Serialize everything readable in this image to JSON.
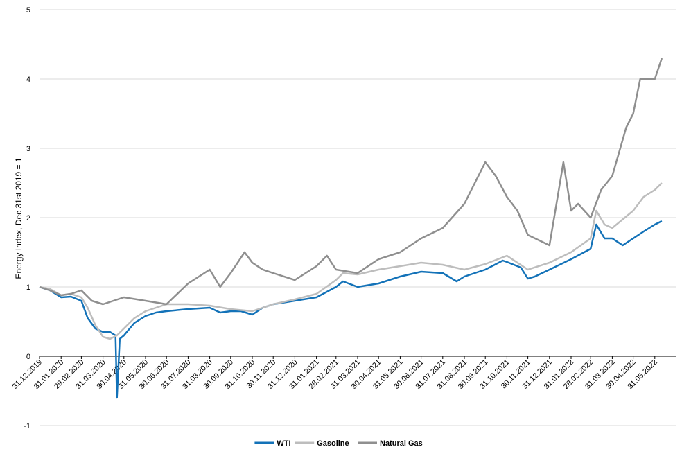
{
  "chart_data": {
    "type": "line",
    "ylabel": "Energy Index, Dec 31st  2019 = 1",
    "ylim": [
      -1,
      5
    ],
    "yticks": [
      -1,
      0,
      1,
      2,
      3,
      4,
      5
    ],
    "x_tick_labels": [
      "31.12.2019",
      "31.01.2020",
      "29.02.2020",
      "31.03.2020",
      "30.04.2020",
      "31.05.2020",
      "30.06.2020",
      "31.07.2020",
      "31.08.2020",
      "30.09.2020",
      "31.10.2020",
      "30.11.2020",
      "31.12.2020",
      "31.01.2021",
      "28.02.2021",
      "31.03.2021",
      "30.04.2021",
      "31.05.2021",
      "30.06.2021",
      "31.07.2021",
      "31.08.2021",
      "30.09.2021",
      "31.10.2021",
      "30.11.2021",
      "31.12.2021",
      "31.01.2022",
      "28.02.2022",
      "31.03.2022",
      "30.04.2022",
      "31.05.2022"
    ],
    "grid": true,
    "legend_position": "bottom",
    "series": [
      {
        "name": "WTI",
        "color": "#1f77b4",
        "stroke": "#1372b8",
        "points": [
          [
            "31.12.2019",
            1.0
          ],
          [
            "15.01.2020",
            0.95
          ],
          [
            "31.01.2020",
            0.85
          ],
          [
            "14.02.2020",
            0.86
          ],
          [
            "29.02.2020",
            0.8
          ],
          [
            "09.03.2020",
            0.55
          ],
          [
            "20.03.2020",
            0.4
          ],
          [
            "31.03.2020",
            0.35
          ],
          [
            "10.04.2020",
            0.35
          ],
          [
            "18.04.2020",
            0.3
          ],
          [
            "20.04.2020",
            -0.6
          ],
          [
            "24.04.2020",
            0.25
          ],
          [
            "30.04.2020",
            0.3
          ],
          [
            "15.05.2020",
            0.48
          ],
          [
            "31.05.2020",
            0.58
          ],
          [
            "15.06.2020",
            0.63
          ],
          [
            "30.06.2020",
            0.65
          ],
          [
            "31.07.2020",
            0.68
          ],
          [
            "31.08.2020",
            0.7
          ],
          [
            "15.09.2020",
            0.63
          ],
          [
            "30.09.2020",
            0.65
          ],
          [
            "15.10.2020",
            0.65
          ],
          [
            "31.10.2020",
            0.6
          ],
          [
            "15.11.2020",
            0.7
          ],
          [
            "30.11.2020",
            0.75
          ],
          [
            "31.12.2020",
            0.8
          ],
          [
            "31.01.2021",
            0.85
          ],
          [
            "28.02.2021",
            1.0
          ],
          [
            "10.03.2021",
            1.08
          ],
          [
            "31.03.2021",
            1.0
          ],
          [
            "30.04.2021",
            1.05
          ],
          [
            "31.05.2021",
            1.15
          ],
          [
            "30.06.2021",
            1.22
          ],
          [
            "31.07.2021",
            1.2
          ],
          [
            "20.08.2021",
            1.08
          ],
          [
            "31.08.2021",
            1.15
          ],
          [
            "30.09.2021",
            1.25
          ],
          [
            "25.10.2021",
            1.38
          ],
          [
            "31.10.2021",
            1.36
          ],
          [
            "20.11.2021",
            1.28
          ],
          [
            "30.11.2021",
            1.12
          ],
          [
            "10.12.2021",
            1.15
          ],
          [
            "31.12.2021",
            1.25
          ],
          [
            "31.01.2022",
            1.4
          ],
          [
            "28.02.2022",
            1.55
          ],
          [
            "08.03.2022",
            1.9
          ],
          [
            "20.03.2022",
            1.7
          ],
          [
            "31.03.2022",
            1.7
          ],
          [
            "15.04.2022",
            1.6
          ],
          [
            "30.04.2022",
            1.7
          ],
          [
            "15.05.2022",
            1.8
          ],
          [
            "31.05.2022",
            1.9
          ],
          [
            "10.06.2022",
            1.95
          ]
        ]
      },
      {
        "name": "Gasoline",
        "color": "#bfbfbf",
        "stroke": "#bdbdbd",
        "points": [
          [
            "31.12.2019",
            1.0
          ],
          [
            "15.01.2020",
            0.97
          ],
          [
            "31.01.2020",
            0.88
          ],
          [
            "14.02.2020",
            0.9
          ],
          [
            "29.02.2020",
            0.85
          ],
          [
            "09.03.2020",
            0.7
          ],
          [
            "20.03.2020",
            0.45
          ],
          [
            "31.03.2020",
            0.28
          ],
          [
            "10.04.2020",
            0.25
          ],
          [
            "20.04.2020",
            0.3
          ],
          [
            "30.04.2020",
            0.4
          ],
          [
            "15.05.2020",
            0.55
          ],
          [
            "31.05.2020",
            0.65
          ],
          [
            "15.06.2020",
            0.7
          ],
          [
            "30.06.2020",
            0.75
          ],
          [
            "31.07.2020",
            0.75
          ],
          [
            "31.08.2020",
            0.73
          ],
          [
            "30.09.2020",
            0.68
          ],
          [
            "31.10.2020",
            0.65
          ],
          [
            "30.11.2020",
            0.75
          ],
          [
            "31.12.2020",
            0.82
          ],
          [
            "31.01.2021",
            0.9
          ],
          [
            "28.02.2021",
            1.1
          ],
          [
            "10.03.2021",
            1.2
          ],
          [
            "31.03.2021",
            1.18
          ],
          [
            "30.04.2021",
            1.25
          ],
          [
            "31.05.2021",
            1.3
          ],
          [
            "30.06.2021",
            1.35
          ],
          [
            "31.07.2021",
            1.32
          ],
          [
            "31.08.2021",
            1.25
          ],
          [
            "30.09.2021",
            1.33
          ],
          [
            "31.10.2021",
            1.45
          ],
          [
            "30.11.2021",
            1.25
          ],
          [
            "31.12.2021",
            1.35
          ],
          [
            "31.01.2022",
            1.5
          ],
          [
            "28.02.2022",
            1.7
          ],
          [
            "08.03.2022",
            2.1
          ],
          [
            "20.03.2022",
            1.9
          ],
          [
            "31.03.2022",
            1.85
          ],
          [
            "30.04.2022",
            2.1
          ],
          [
            "15.05.2022",
            2.3
          ],
          [
            "31.05.2022",
            2.4
          ],
          [
            "10.06.2022",
            2.5
          ]
        ]
      },
      {
        "name": "Natural Gas",
        "color": "#969696",
        "stroke": "#8f8f8f",
        "points": [
          [
            "31.12.2019",
            1.0
          ],
          [
            "15.01.2020",
            0.95
          ],
          [
            "31.01.2020",
            0.88
          ],
          [
            "14.02.2020",
            0.9
          ],
          [
            "29.02.2020",
            0.95
          ],
          [
            "15.03.2020",
            0.8
          ],
          [
            "31.03.2020",
            0.75
          ],
          [
            "30.04.2020",
            0.85
          ],
          [
            "31.05.2020",
            0.8
          ],
          [
            "30.06.2020",
            0.75
          ],
          [
            "31.07.2020",
            1.05
          ],
          [
            "31.08.2020",
            1.25
          ],
          [
            "15.09.2020",
            1.0
          ],
          [
            "30.09.2020",
            1.2
          ],
          [
            "20.10.2020",
            1.5
          ],
          [
            "31.10.2020",
            1.35
          ],
          [
            "15.11.2020",
            1.25
          ],
          [
            "30.11.2020",
            1.2
          ],
          [
            "31.12.2020",
            1.1
          ],
          [
            "31.01.2021",
            1.3
          ],
          [
            "15.02.2021",
            1.45
          ],
          [
            "28.02.2021",
            1.25
          ],
          [
            "31.03.2021",
            1.2
          ],
          [
            "30.04.2021",
            1.4
          ],
          [
            "31.05.2021",
            1.5
          ],
          [
            "30.06.2021",
            1.7
          ],
          [
            "31.07.2021",
            1.85
          ],
          [
            "31.08.2021",
            2.2
          ],
          [
            "15.09.2021",
            2.5
          ],
          [
            "30.09.2021",
            2.8
          ],
          [
            "15.10.2021",
            2.6
          ],
          [
            "31.10.2021",
            2.3
          ],
          [
            "15.11.2021",
            2.1
          ],
          [
            "30.11.2021",
            1.75
          ],
          [
            "31.12.2021",
            1.6
          ],
          [
            "10.01.2022",
            2.2
          ],
          [
            "20.01.2022",
            2.8
          ],
          [
            "31.01.2022",
            2.1
          ],
          [
            "10.02.2022",
            2.2
          ],
          [
            "28.02.2022",
            2.0
          ],
          [
            "15.03.2022",
            2.4
          ],
          [
            "31.03.2022",
            2.6
          ],
          [
            "20.04.2022",
            3.3
          ],
          [
            "30.04.2022",
            3.5
          ],
          [
            "10.05.2022",
            4.0
          ],
          [
            "31.05.2022",
            4.0
          ],
          [
            "10.06.2022",
            4.3
          ]
        ]
      }
    ]
  }
}
